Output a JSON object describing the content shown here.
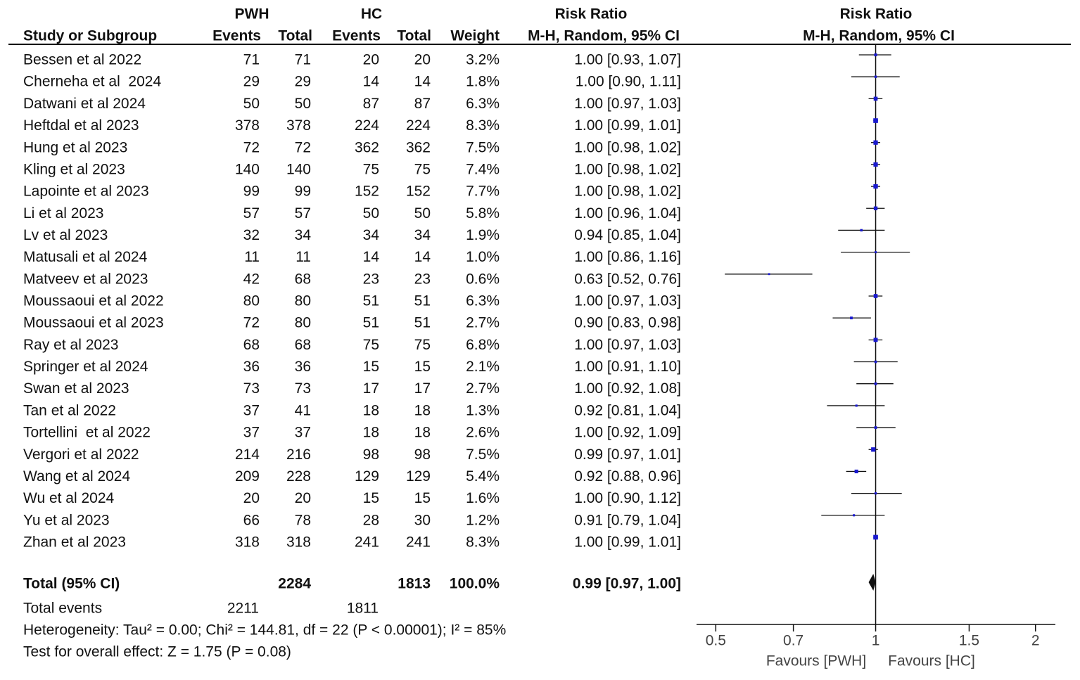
{
  "table": {
    "groups": [
      "PWH",
      "HC",
      "Risk Ratio"
    ],
    "columns": [
      "Study or Subgroup",
      "Events",
      "Total",
      "Events",
      "Total",
      "Weight",
      "M-H, Random, 95% CI"
    ],
    "rows": [
      [
        "Bessen et al 2022",
        "71",
        "71",
        "20",
        "20",
        "3.2%",
        "1.00 [0.93, 1.07]"
      ],
      [
        "Cherneha et al  2024",
        "29",
        "29",
        "14",
        "14",
        "1.8%",
        "1.00 [0.90, 1.11]"
      ],
      [
        "Datwani et al 2024",
        "50",
        "50",
        "87",
        "87",
        "6.3%",
        "1.00 [0.97, 1.03]"
      ],
      [
        "Heftdal et al 2023",
        "378",
        "378",
        "224",
        "224",
        "8.3%",
        "1.00 [0.99, 1.01]"
      ],
      [
        "Hung et al 2023",
        "72",
        "72",
        "362",
        "362",
        "7.5%",
        "1.00 [0.98, 1.02]"
      ],
      [
        "Kling et al 2023",
        "140",
        "140",
        "75",
        "75",
        "7.4%",
        "1.00 [0.98, 1.02]"
      ],
      [
        "Lapointe et al 2023",
        "99",
        "99",
        "152",
        "152",
        "7.7%",
        "1.00 [0.98, 1.02]"
      ],
      [
        "Li et al 2023",
        "57",
        "57",
        "50",
        "50",
        "5.8%",
        "1.00 [0.96, 1.04]"
      ],
      [
        "Lv et al 2023",
        "32",
        "34",
        "34",
        "34",
        "1.9%",
        "0.94 [0.85, 1.04]"
      ],
      [
        "Matusali et al 2024",
        "11",
        "11",
        "14",
        "14",
        "1.0%",
        "1.00 [0.86, 1.16]"
      ],
      [
        "Matveev et al 2023",
        "42",
        "68",
        "23",
        "23",
        "0.6%",
        "0.63 [0.52, 0.76]"
      ],
      [
        "Moussaoui et al 2022",
        "80",
        "80",
        "51",
        "51",
        "6.3%",
        "1.00 [0.97, 1.03]"
      ],
      [
        "Moussaoui et al 2023",
        "72",
        "80",
        "51",
        "51",
        "2.7%",
        "0.90 [0.83, 0.98]"
      ],
      [
        "Ray et al 2023",
        "68",
        "68",
        "75",
        "75",
        "6.8%",
        "1.00 [0.97, 1.03]"
      ],
      [
        "Springer et al 2024",
        "36",
        "36",
        "15",
        "15",
        "2.1%",
        "1.00 [0.91, 1.10]"
      ],
      [
        "Swan et al 2023",
        "73",
        "73",
        "17",
        "17",
        "2.7%",
        "1.00 [0.92, 1.08]"
      ],
      [
        "Tan et al 2022",
        "37",
        "41",
        "18",
        "18",
        "1.3%",
        "0.92 [0.81, 1.04]"
      ],
      [
        "Tortellini  et al 2022",
        "37",
        "37",
        "18",
        "18",
        "2.6%",
        "1.00 [0.92, 1.09]"
      ],
      [
        "Vergori et al 2022",
        "214",
        "216",
        "98",
        "98",
        "7.5%",
        "0.99 [0.97, 1.01]"
      ],
      [
        "Wang et al 2024",
        "209",
        "228",
        "129",
        "129",
        "5.4%",
        "0.92 [0.88, 0.96]"
      ],
      [
        "Wu et al 2024",
        "20",
        "20",
        "15",
        "15",
        "1.6%",
        "1.00 [0.90, 1.12]"
      ],
      [
        "Yu et al 2023",
        "66",
        "78",
        "28",
        "30",
        "1.2%",
        "0.91 [0.79, 1.04]"
      ],
      [
        "Zhan et al 2023",
        "318",
        "318",
        "241",
        "241",
        "8.3%",
        "1.00 [0.99, 1.01]"
      ]
    ],
    "total": [
      "Total (95% CI)",
      "2284",
      "1813",
      "100.0%",
      "0.99 [0.97, 1.00]"
    ],
    "total_events": [
      "Total events",
      "2211",
      "1811"
    ],
    "heterogeneity": "Heterogeneity: Tau² = 0.00; Chi² = 144.81, df = 22 (P < 0.00001); I² = 85%",
    "overall_effect": "Test for overall effect: Z = 1.75 (P = 0.08)"
  },
  "chart_data": {
    "type": "forest",
    "title": "Risk Ratio",
    "subtitle": "M-H, Random, 95% CI",
    "values": [
      1.0,
      1.0,
      1.0,
      1.0,
      1.0,
      1.0,
      1.0,
      1.0,
      0.94,
      1.0,
      0.63,
      1.0,
      0.9,
      1.0,
      1.0,
      1.0,
      0.92,
      1.0,
      0.99,
      0.92,
      1.0,
      0.91,
      1.0
    ],
    "lower": [
      0.93,
      0.9,
      0.97,
      0.99,
      0.98,
      0.98,
      0.98,
      0.96,
      0.85,
      0.86,
      0.52,
      0.97,
      0.83,
      0.97,
      0.91,
      0.92,
      0.81,
      0.92,
      0.97,
      0.88,
      0.9,
      0.79,
      0.99
    ],
    "upper": [
      1.07,
      1.11,
      1.03,
      1.01,
      1.02,
      1.02,
      1.02,
      1.04,
      1.04,
      1.16,
      0.76,
      1.03,
      0.98,
      1.03,
      1.1,
      1.08,
      1.04,
      1.09,
      1.01,
      0.96,
      1.12,
      1.04,
      1.01
    ],
    "weights": [
      3.2,
      1.8,
      6.3,
      8.3,
      7.5,
      7.4,
      7.7,
      5.8,
      1.9,
      1.0,
      0.6,
      6.3,
      2.7,
      6.8,
      2.1,
      2.7,
      1.3,
      2.6,
      7.5,
      5.4,
      1.6,
      1.2,
      8.3
    ],
    "total_value": 0.99,
    "total_lower": 0.97,
    "total_upper": 1.0,
    "log_x": true,
    "xlim": [
      0.46,
      2.18
    ],
    "xticks": [
      0.5,
      0.7,
      1,
      1.5,
      2
    ],
    "x_labels": [
      "Favours [PWH]",
      "Favours [HC]"
    ],
    "color": "#1a1ad0"
  }
}
